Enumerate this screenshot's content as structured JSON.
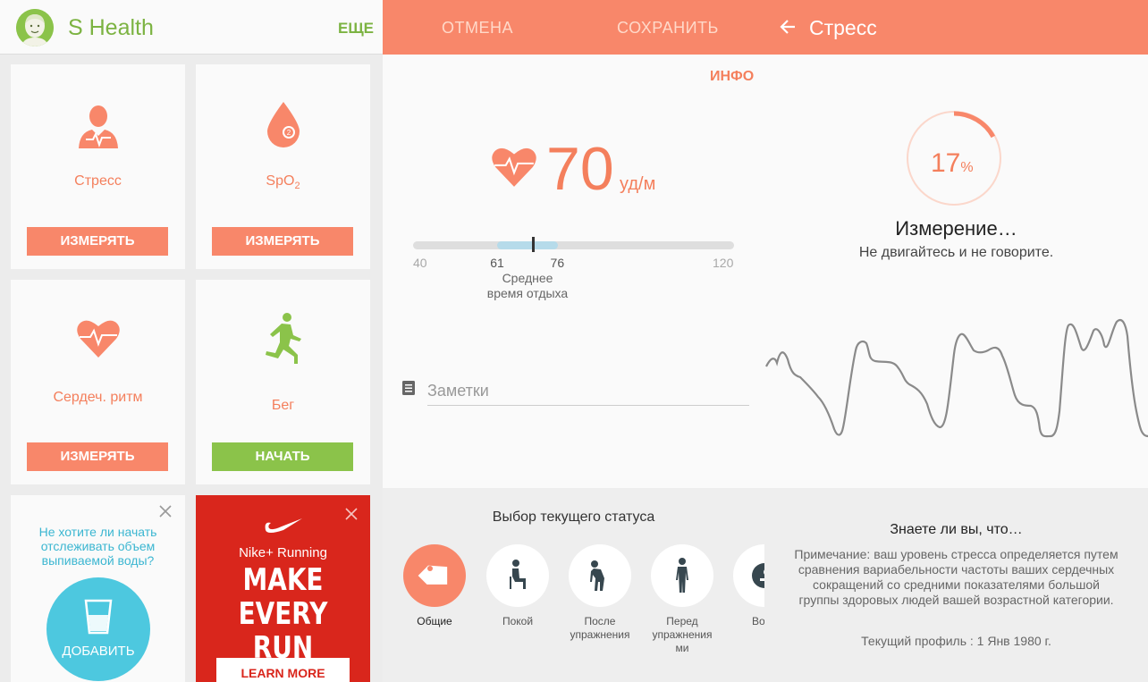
{
  "colors": {
    "accent": "#f8876a",
    "accent_text": "#f47f5c",
    "green": "#8bc34a",
    "water": "#4dc8df",
    "nike_red": "#d9261c"
  },
  "dashboard": {
    "app_title": "S Health",
    "more_label": "ЕЩЕ",
    "tiles": [
      {
        "label": "Стресс",
        "button": "ИЗМЕРЯТЬ",
        "icon": "stress-person-icon"
      },
      {
        "label_main": "SpO",
        "label_sub": "2",
        "button": "ИЗМЕРЯТЬ",
        "icon": "spo2-drop-icon"
      },
      {
        "label": "Сердеч. ритм",
        "button": "ИЗМЕРЯТЬ",
        "icon": "heart-rate-icon"
      },
      {
        "label": "Бег",
        "button": "НАЧАТЬ",
        "icon": "runner-icon"
      }
    ],
    "water_card": {
      "text": "Не хотите ли начать отслеживать объем выпиваемой воды?",
      "button": "ДОБАВИТЬ"
    },
    "nike_ad": {
      "brand": "Nike+ Running",
      "headline_1": "MAKE EVERY",
      "headline_2": "RUN COUNT",
      "button": "LEARN MORE"
    }
  },
  "heart_rate": {
    "cancel": "ОТМЕНА",
    "save": "СОХРАНИТЬ",
    "info": "ИНФО",
    "value": "70",
    "unit": "уд/м",
    "scale": {
      "min": 40,
      "max": 120,
      "rest_low": 61,
      "rest_high": 76,
      "current": 70
    },
    "ticks": {
      "min": "40",
      "low": "61",
      "high": "76",
      "max": "120"
    },
    "avg_label_1": "Среднее",
    "avg_label_2": "время отдыха",
    "notes_placeholder": "Заметки",
    "status_title": "Выбор текущего статуса",
    "statuses": [
      {
        "label": "Общие",
        "icon": "tag-icon",
        "active": true
      },
      {
        "label": "Покой",
        "icon": "sitting-person-icon"
      },
      {
        "label_1": "После",
        "label_2": "упражнения",
        "icon": "bent-over-person-icon"
      },
      {
        "label_1": "Перед",
        "label_2": "упражнения",
        "label_3": "ми",
        "icon": "standing-person-icon"
      },
      {
        "label": "Волн",
        "icon": "emotion-face-icon"
      }
    ]
  },
  "stress": {
    "title": "Стресс",
    "percent": "17",
    "percent_sign": "%",
    "progress": 0.17,
    "measuring": "Измерение…",
    "instruction": "Не двигайтесь и не говорите.",
    "did_you_know_title": "Знаете ли вы, что…",
    "note": "Примечание: ваш уровень стресса определяется путем сравнения вариабельности частоты ваших сердечных сокращений со средними показателями большой группы здоровых людей вашей возрастной категории.",
    "profile": "Текущий профиль : 1 Янв 1980 г."
  }
}
